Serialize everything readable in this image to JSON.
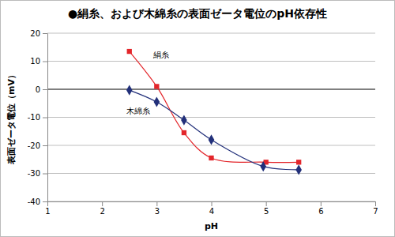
{
  "chart_data": {
    "type": "line",
    "title": "●絹糸、および木綿糸の表面ゼータ電位のpH依存性",
    "x_label": "pH",
    "y_label": "表面ゼータ電位（mV）",
    "xlim": [
      1,
      7
    ],
    "xticks": [
      1,
      2,
      3,
      4,
      5,
      6,
      7
    ],
    "ylim": [
      -40,
      20
    ],
    "yticks": [
      -40,
      -30,
      -20,
      -10,
      0,
      10,
      20
    ],
    "grid": true,
    "line_style": "smooth",
    "series": [
      {
        "name": "絹糸",
        "color": "#e3262b",
        "marker": "square",
        "x": [
          2.5,
          3,
          3.5,
          4,
          5,
          5.6
        ],
        "values": [
          13.5,
          1,
          -15.5,
          -24.5,
          -26,
          -26
        ]
      },
      {
        "name": "木綿糸",
        "color": "#22307a",
        "marker": "diamond",
        "x": [
          2.5,
          3,
          3.5,
          4,
          4.95,
          5.6
        ],
        "values": [
          -0.3,
          -4.5,
          -11,
          -18,
          -27.5,
          -28.7
        ]
      }
    ]
  }
}
